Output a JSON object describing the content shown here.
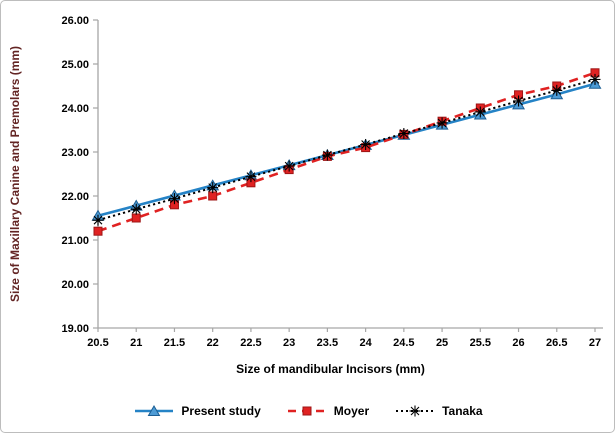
{
  "chart_data": {
    "type": "line",
    "title": "",
    "xlabel": "Size of mandibular  Incisors (mm)",
    "ylabel": "Size of Maxillary Canine and Premolars (mm)",
    "x": [
      20.5,
      21,
      21.5,
      22,
      22.5,
      23,
      23.5,
      24,
      24.5,
      25,
      25.5,
      26,
      26.5,
      27
    ],
    "xtick_labels": [
      "20.5",
      "21",
      "21.5",
      "22",
      "22.5",
      "23",
      "23.5",
      "24",
      "24.5",
      "25",
      "25.5",
      "26",
      "26.5",
      "27"
    ],
    "ylim": [
      19,
      26
    ],
    "ytick_labels": [
      "19.00",
      "20.00",
      "21.00",
      "22.00",
      "23.00",
      "24.00",
      "25.00",
      "26.00"
    ],
    "grid": false,
    "legend_position": "bottom",
    "series": [
      {
        "name": "Present study",
        "color": "#2583C6",
        "marker_fill": "#4D9BD5",
        "marker_edge": "#1C5E93",
        "line_style": "solid",
        "marker": "triangle",
        "values": [
          21.55,
          21.78,
          22.01,
          22.24,
          22.47,
          22.7,
          22.93,
          23.16,
          23.39,
          23.62,
          23.85,
          24.08,
          24.31,
          24.55
        ]
      },
      {
        "name": "Moyer",
        "color": "#E02222",
        "marker_fill": "#E02222",
        "marker_edge": "#9E1515",
        "line_style": "dashed",
        "marker": "square",
        "values": [
          21.2,
          21.5,
          21.8,
          22.0,
          22.3,
          22.6,
          22.9,
          23.1,
          23.4,
          23.7,
          24.0,
          24.3,
          24.5,
          24.8
        ]
      },
      {
        "name": "Tanaka",
        "color": "#000000",
        "marker_fill": "#000000",
        "marker_edge": "#000000",
        "line_style": "dotted",
        "marker": "asterisk",
        "values": [
          21.45,
          21.7,
          21.94,
          22.19,
          22.44,
          22.68,
          22.93,
          23.17,
          23.42,
          23.66,
          23.91,
          24.16,
          24.4,
          24.65
        ]
      }
    ]
  },
  "colors": {
    "axis_line": "#a6a6a6",
    "tick_text": "#000000",
    "xlabel_color": "#000000",
    "ylabel_color": "#632423",
    "frame_border": "#bdbdbd",
    "background": "#ffffff"
  }
}
